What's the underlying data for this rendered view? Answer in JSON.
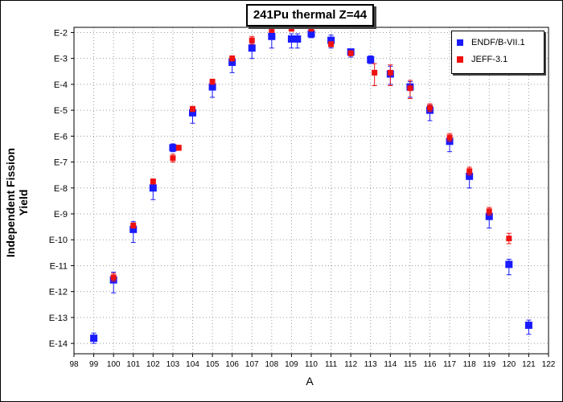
{
  "chart_data": {
    "type": "scatter",
    "title": "241Pu thermal Z=44",
    "xlabel": "A",
    "ylabel": "Independent Fission Yield",
    "xlim": [
      98,
      122
    ],
    "ylim_log10": [
      -14.4,
      -1.8
    ],
    "yscale": "log",
    "x_ticks": [
      "98",
      "99",
      "100",
      "101",
      "102",
      "103",
      "104",
      "105",
      "106",
      "107",
      "108",
      "109",
      "110",
      "111",
      "112",
      "113",
      "114",
      "115",
      "116",
      "117",
      "118",
      "119",
      "120",
      "121",
      "122"
    ],
    "y_ticks": [
      {
        "exp": -2,
        "label": "E-2"
      },
      {
        "exp": -3,
        "label": "E-3"
      },
      {
        "exp": -4,
        "label": "E-4"
      },
      {
        "exp": -5,
        "label": "E-5"
      },
      {
        "exp": -6,
        "label": "E-6"
      },
      {
        "exp": -7,
        "label": "E-7"
      },
      {
        "exp": -8,
        "label": "E-8"
      },
      {
        "exp": -9,
        "label": "E-9"
      },
      {
        "exp": -10,
        "label": "E-10"
      },
      {
        "exp": -11,
        "label": "E-11"
      },
      {
        "exp": -12,
        "label": "E-12"
      },
      {
        "exp": -13,
        "label": "E-13"
      },
      {
        "exp": -14,
        "label": "E-14"
      }
    ],
    "grid": true,
    "legend_position": "top-right",
    "series": [
      {
        "name": "ENDF/B-VII.1",
        "color": "#1a1aff",
        "points": [
          {
            "x": 99,
            "y": -13.8,
            "err_lo": 0.2,
            "err_hi": 0.2
          },
          {
            "x": 100,
            "y": -11.55,
            "err_lo": 0.5,
            "err_hi": 0.3
          },
          {
            "x": 101,
            "y": -9.6,
            "err_lo": 0.5,
            "err_hi": 0.3
          },
          {
            "x": 102,
            "y": -8.0,
            "err_lo": 0.45,
            "err_hi": 0.3
          },
          {
            "x": 103,
            "y": -6.45,
            "err_lo": 0.15,
            "err_hi": 0.15
          },
          {
            "x": 104,
            "y": -5.1,
            "err_lo": 0.4,
            "err_hi": 0.2
          },
          {
            "x": 105,
            "y": -4.1,
            "err_lo": 0.4,
            "err_hi": 0.2
          },
          {
            "x": 106,
            "y": -3.15,
            "err_lo": 0.4,
            "err_hi": 0.2
          },
          {
            "x": 107,
            "y": -2.6,
            "err_lo": 0.4,
            "err_hi": 0.2
          },
          {
            "x": 108,
            "y": -2.15,
            "err_lo": 0.45,
            "err_hi": 0.2
          },
          {
            "x": 109,
            "y": -2.25,
            "err_lo": 0.35,
            "err_hi": 0.2
          },
          {
            "x": 109.3,
            "y": -2.25,
            "err_lo": 0.35,
            "err_hi": 0.2
          },
          {
            "x": 110,
            "y": -2.05,
            "err_lo": 0.15,
            "err_hi": 0.15
          },
          {
            "x": 111,
            "y": -2.3,
            "err_lo": 0.3,
            "err_hi": 0.2
          },
          {
            "x": 112,
            "y": -2.75,
            "err_lo": 0.2,
            "err_hi": 0.1
          },
          {
            "x": 113,
            "y": -3.05,
            "err_lo": 0.15,
            "err_hi": 0.15
          },
          {
            "x": 114,
            "y": -3.6,
            "err_lo": 0.4,
            "err_hi": 0.3
          },
          {
            "x": 115,
            "y": -4.1,
            "err_lo": 0.4,
            "err_hi": 0.2
          },
          {
            "x": 116,
            "y": -5.0,
            "err_lo": 0.4,
            "err_hi": 0.2
          },
          {
            "x": 117,
            "y": -6.2,
            "err_lo": 0.4,
            "err_hi": 0.2
          },
          {
            "x": 118,
            "y": -7.55,
            "err_lo": 0.45,
            "err_hi": 0.2
          },
          {
            "x": 119,
            "y": -9.1,
            "err_lo": 0.45,
            "err_hi": 0.2
          },
          {
            "x": 120,
            "y": -10.95,
            "err_lo": 0.4,
            "err_hi": 0.2
          },
          {
            "x": 121,
            "y": -13.3,
            "err_lo": 0.35,
            "err_hi": 0.2
          }
        ]
      },
      {
        "name": "JEFF-3.1",
        "color": "#ee1111",
        "points": [
          {
            "x": 100,
            "y": -11.45,
            "err_lo": 0.15,
            "err_hi": 0.15
          },
          {
            "x": 101,
            "y": -9.45,
            "err_lo": 0.1,
            "err_hi": 0.1
          },
          {
            "x": 102,
            "y": -7.75,
            "err_lo": 0.1,
            "err_hi": 0.1
          },
          {
            "x": 103,
            "y": -6.85,
            "err_lo": 0.15,
            "err_hi": 0.15
          },
          {
            "x": 103.3,
            "y": -6.45,
            "err_lo": 0.1,
            "err_hi": 0.1
          },
          {
            "x": 104,
            "y": -4.95,
            "err_lo": 0.1,
            "err_hi": 0.1
          },
          {
            "x": 105,
            "y": -3.9,
            "err_lo": 0.1,
            "err_hi": 0.1
          },
          {
            "x": 106,
            "y": -3.0,
            "err_lo": 0.1,
            "err_hi": 0.1
          },
          {
            "x": 107,
            "y": -2.3,
            "err_lo": 0.15,
            "err_hi": 0.15
          },
          {
            "x": 108,
            "y": -1.9,
            "err_lo": 0.1,
            "err_hi": 0.1
          },
          {
            "x": 109,
            "y": -1.85,
            "err_lo": 0.1,
            "err_hi": 0.1
          },
          {
            "x": 110,
            "y": -1.85,
            "err_lo": 0.1,
            "err_hi": 0.1
          },
          {
            "x": 111,
            "y": -2.45,
            "err_lo": 0.1,
            "err_hi": 0.1
          },
          {
            "x": 112,
            "y": -2.8,
            "err_lo": 0.1,
            "err_hi": 0.1
          },
          {
            "x": 113.2,
            "y": -3.55,
            "err_lo": 0.5,
            "err_hi": 0.35
          },
          {
            "x": 114,
            "y": -3.55,
            "err_lo": 0.5,
            "err_hi": 0.3
          },
          {
            "x": 115,
            "y": -4.15,
            "err_lo": 0.4,
            "err_hi": 0.3
          },
          {
            "x": 116,
            "y": -4.9,
            "err_lo": 0.15,
            "err_hi": 0.15
          },
          {
            "x": 117,
            "y": -6.05,
            "err_lo": 0.15,
            "err_hi": 0.15
          },
          {
            "x": 118,
            "y": -7.35,
            "err_lo": 0.15,
            "err_hi": 0.15
          },
          {
            "x": 119,
            "y": -8.9,
            "err_lo": 0.15,
            "err_hi": 0.15
          },
          {
            "x": 120,
            "y": -9.95,
            "err_lo": 0.2,
            "err_hi": 0.2
          }
        ]
      }
    ]
  }
}
